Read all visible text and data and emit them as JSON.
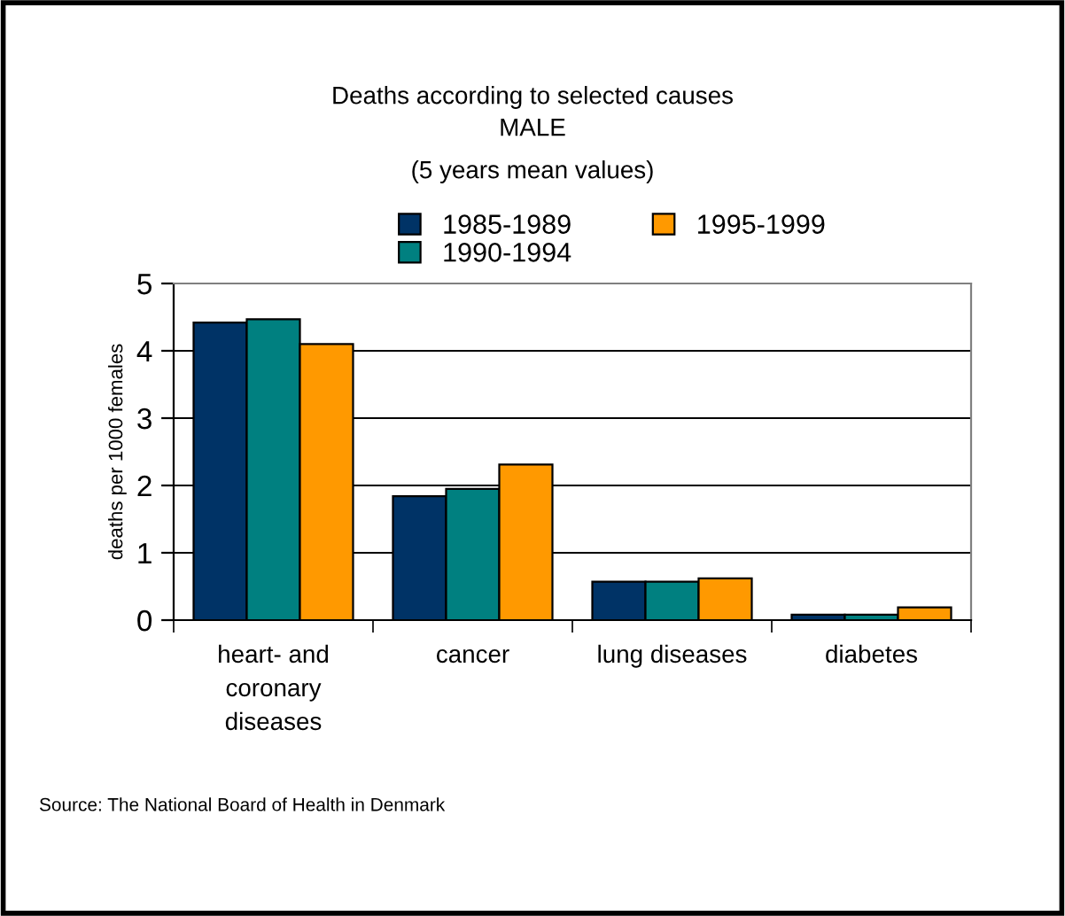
{
  "chart_data": {
    "type": "bar",
    "title": "Deaths according to selected causes",
    "subtitle": "MALE\n(5 years mean values)",
    "ylabel": "deaths per 1000 females",
    "categories": [
      "heart- and\ncoronary\ndiseases",
      "cancer",
      "lung diseases",
      "diabetes"
    ],
    "series": [
      {
        "name": "1985-1989",
        "color": "#003366",
        "values": [
          4.42,
          1.84,
          0.57,
          0.08
        ]
      },
      {
        "name": "1990-1994",
        "color": "#008080",
        "values": [
          4.47,
          1.95,
          0.57,
          0.08
        ]
      },
      {
        "name": "1995-1999",
        "color": "#ff9900",
        "values": [
          4.1,
          2.31,
          0.62,
          0.19
        ]
      }
    ],
    "ylim": [
      0,
      5
    ],
    "yticks": [
      0,
      1,
      2,
      3,
      4,
      5
    ],
    "grid": "y",
    "legend": "top",
    "annotations": [
      "Source: The National Board of Health in Denmark"
    ]
  }
}
